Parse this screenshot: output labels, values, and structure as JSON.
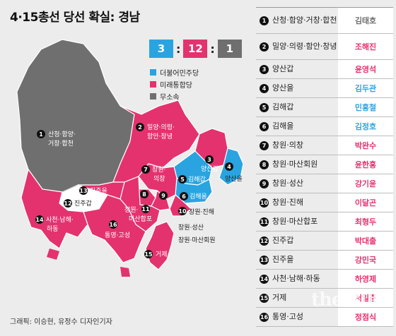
{
  "title": "4·15총선 당선 확실: 경남",
  "colors": {
    "blue": "#29a4e1",
    "pink": "#e4326f",
    "gray": "#6f6f6f",
    "white": "#ffffff"
  },
  "score": {
    "blue": "3",
    "pink": "12",
    "gray": "1"
  },
  "legend": [
    {
      "label": "더불어민주당",
      "color": "#29a4e1"
    },
    {
      "label": "미래통합당",
      "color": "#e4326f"
    },
    {
      "label": "무소속",
      "color": "#6f6f6f"
    }
  ],
  "map_labels": {
    "d1": "산청·함양·",
    "d1b": "거창·합천",
    "d2": "밀양·의령·",
    "d2b": "함안·창녕",
    "d3": "양산갑",
    "d4": "양산을",
    "d5": "김해갑",
    "d6": "김해을",
    "d7": "창원·",
    "d7b": "의창",
    "d11": "창원·",
    "d11b": "마산합포",
    "d12": "진주갑",
    "d13": "진주을",
    "d14": "사천·남해·",
    "d14b": "하동",
    "d15": "거제",
    "d16": "통영·고성",
    "d10": "창원·진해",
    "d9": "창원·성산",
    "d8": "창원·마산회원"
  },
  "table": [
    {
      "num": "1",
      "district": "산청·함양·거창·합천",
      "winner": "김태호",
      "color": "#6f6f6f"
    },
    {
      "num": "2",
      "district": "밀양·의령·함안·창녕",
      "winner": "조해진",
      "color": "#e4326f"
    },
    {
      "num": "3",
      "district": "양산갑",
      "winner": "윤영석",
      "color": "#e4326f"
    },
    {
      "num": "4",
      "district": "양산을",
      "winner": "김두관",
      "color": "#29a4e1"
    },
    {
      "num": "5",
      "district": "김해갑",
      "winner": "민홍철",
      "color": "#29a4e1"
    },
    {
      "num": "6",
      "district": "김해을",
      "winner": "김정호",
      "color": "#29a4e1"
    },
    {
      "num": "7",
      "district": "창원·의창",
      "winner": "박완수",
      "color": "#e4326f"
    },
    {
      "num": "8",
      "district": "창원·마산회원",
      "winner": "윤한홍",
      "color": "#e4326f"
    },
    {
      "num": "9",
      "district": "창원·성산",
      "winner": "강기윤",
      "color": "#e4326f"
    },
    {
      "num": "10",
      "district": "창원·진해",
      "winner": "이달곤",
      "color": "#e4326f"
    },
    {
      "num": "11",
      "district": "창원·마산합포",
      "winner": "최형두",
      "color": "#e4326f"
    },
    {
      "num": "12",
      "district": "진주갑",
      "winner": "박대출",
      "color": "#e4326f"
    },
    {
      "num": "13",
      "district": "진주을",
      "winner": "강민국",
      "color": "#e4326f"
    },
    {
      "num": "14",
      "district": "사천·남해·하동",
      "winner": "하영제",
      "color": "#e4326f"
    },
    {
      "num": "15",
      "district": "거제",
      "winner": "서일준",
      "color": "#e4326f"
    },
    {
      "num": "16",
      "district": "통영·고성",
      "winner": "정점식",
      "color": "#e4326f"
    }
  ],
  "credit": "그래픽: 이승현, 유정수 디자인기자",
  "watermark": "the 300"
}
